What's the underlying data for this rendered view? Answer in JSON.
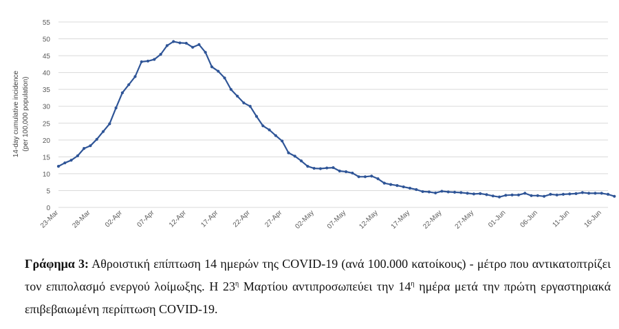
{
  "chart_data": {
    "type": "line",
    "ylabel_line1": "14-day cumulative incidence",
    "ylabel_line2": "(per 100,000 population)",
    "ylim": [
      0,
      55
    ],
    "yticks": [
      0,
      5,
      10,
      15,
      20,
      25,
      30,
      35,
      40,
      45,
      50,
      55
    ],
    "grid": true,
    "line_color": "#2F5597",
    "x_tick_labels": [
      "23-Mar",
      "28-Mar",
      "02-Apr",
      "07-Apr",
      "12-Apr",
      "17-Apr",
      "22-Apr",
      "27-Apr",
      "02-May",
      "07-May",
      "12-May",
      "17-May",
      "22-May",
      "27-May",
      "01-Jun",
      "06-Jun",
      "11-Jun",
      "16-Jun"
    ],
    "x_start": "2020-03-23",
    "x_end": "2020-06-17",
    "values": [
      12.2,
      13.2,
      14,
      15.3,
      17.5,
      18.3,
      20.2,
      22.5,
      24.8,
      29.5,
      34,
      36.4,
      38.8,
      43.2,
      43.4,
      43.9,
      45.4,
      48,
      49.2,
      48.8,
      48.7,
      47.5,
      48.3,
      46,
      41.7,
      40.4,
      38.4,
      35,
      33,
      31,
      30,
      27,
      24.2,
      23,
      21.3,
      19.7,
      16.2,
      15.2,
      13.8,
      12.2,
      11.6,
      11.5,
      11.7,
      11.8,
      10.8,
      10.6,
      10.2,
      9.1,
      9.1,
      9.3,
      8.5,
      7.2,
      6.8,
      6.5,
      6.1,
      5.7,
      5.3,
      4.7,
      4.6,
      4.3,
      4.8,
      4.6,
      4.5,
      4.4,
      4.2,
      4,
      4.1,
      3.8,
      3.4,
      3.1,
      3.6,
      3.7,
      3.7,
      4.2,
      3.5,
      3.5,
      3.3,
      3.9,
      3.7,
      3.9,
      4,
      4.1,
      4.4,
      4.2,
      4.2,
      4.2,
      3.9,
      3.3
    ]
  },
  "caption": {
    "label": "Γράφημα 3:",
    "text1": " Αθροιστική επίπτωση 14 ημερών της COVID-19 (ανά 100.000 κατοίκους) - μέτρο που αντικατοπτρίζει τον επιπολασμό ενεργού λοίμωξης. Η 23",
    "sup1": "η",
    "text2": " Μαρτίου αντιπροσωπεύει την 14",
    "sup2": "η",
    "text3": " ημέρα μετά την πρώτη εργαστηριακά επιβεβαιωμένη περίπτωση COVID-19."
  }
}
